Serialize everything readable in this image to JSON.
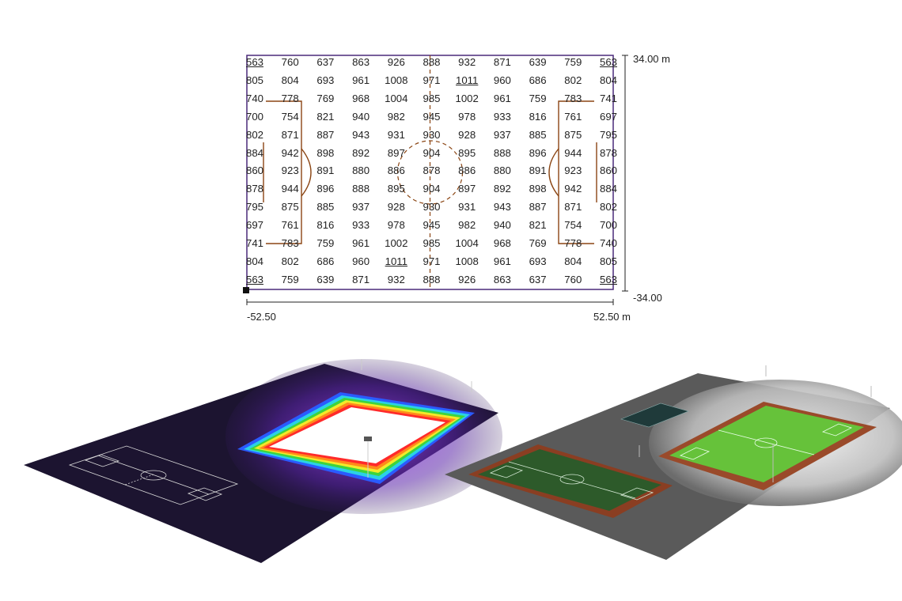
{
  "illuminance_grid": {
    "rows": [
      [
        "563",
        "760",
        "637",
        "863",
        "926",
        "888",
        "932",
        "871",
        "639",
        "759",
        "563"
      ],
      [
        "805",
        "804",
        "693",
        "961",
        "1008",
        "971",
        "1011",
        "960",
        "686",
        "802",
        "804"
      ],
      [
        "740",
        "778",
        "769",
        "968",
        "1004",
        "985",
        "1002",
        "961",
        "759",
        "783",
        "741"
      ],
      [
        "700",
        "754",
        "821",
        "940",
        "982",
        "945",
        "978",
        "933",
        "816",
        "761",
        "697"
      ],
      [
        "802",
        "871",
        "887",
        "943",
        "931",
        "930",
        "928",
        "937",
        "885",
        "875",
        "795"
      ],
      [
        "884",
        "942",
        "898",
        "892",
        "897",
        "904",
        "895",
        "888",
        "896",
        "944",
        "878"
      ],
      [
        "860",
        "923",
        "891",
        "880",
        "886",
        "878",
        "886",
        "880",
        "891",
        "923",
        "860"
      ],
      [
        "878",
        "944",
        "896",
        "888",
        "895",
        "904",
        "897",
        "892",
        "898",
        "942",
        "884"
      ],
      [
        "795",
        "875",
        "885",
        "937",
        "928",
        "930",
        "931",
        "943",
        "887",
        "871",
        "802"
      ],
      [
        "697",
        "761",
        "816",
        "933",
        "978",
        "945",
        "982",
        "940",
        "821",
        "754",
        "700"
      ],
      [
        "741",
        "783",
        "759",
        "961",
        "1002",
        "985",
        "1004",
        "968",
        "769",
        "778",
        "740"
      ],
      [
        "804",
        "802",
        "686",
        "960",
        "1011",
        "971",
        "1008",
        "961",
        "693",
        "804",
        "805"
      ],
      [
        "563",
        "759",
        "639",
        "871",
        "932",
        "888",
        "926",
        "863",
        "637",
        "760",
        "563"
      ]
    ],
    "underlined": [
      [
        0,
        0
      ],
      [
        0,
        10
      ],
      [
        1,
        6
      ],
      [
        11,
        4
      ],
      [
        12,
        0
      ],
      [
        12,
        10
      ]
    ],
    "y_top_label": "34.00 m",
    "y_bottom_label": "-34.00",
    "x_left_label": "-52.50",
    "x_right_label": "52.50 m"
  },
  "colors": {
    "frame": "#4a2a7a",
    "field_lines": "#8b4513",
    "heatmap_bg": "#1c1430",
    "heatmap_glow": "#6a2cc0",
    "track": "#9a4a2a",
    "turf_lit": "#66c23a",
    "turf_dark": "#2d5a2a",
    "ground_grey": "#5a5a5a"
  }
}
